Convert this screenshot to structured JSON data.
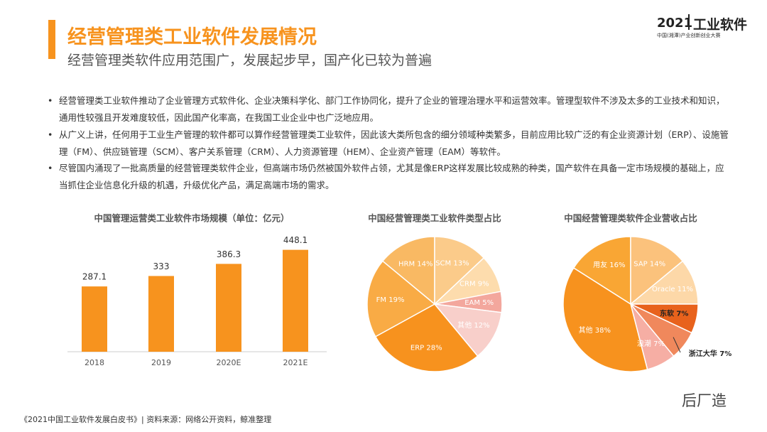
{
  "header": {
    "title": "经营管理类工业软件发展情况",
    "subtitle": "经营管理类软件应用范围广，发展起步早，国产化已较为普遍",
    "logo": {
      "year": "2021",
      "name": "工业软件",
      "caption": "中国(湘潭)产业创新创业大赛"
    }
  },
  "bullets": [
    "经营管理类工业软件推动了企业管理方式软件化、企业决策科学化、部门工作协同化，提升了企业的管理治理水平和运营效率。管理型软件不涉及太多的工业技术和知识，通用性较强且开发难度较低，因此国产化率高，在我国工业企业中也广泛地应用。",
    "从广义上讲，任何用于工业生产管理的软件都可以算作经营管理类工业软件，因此该大类所包含的细分领域种类繁多，目前应用比较广泛的有企业资源计划（ERP）、设施管理（FM）、供应链管理（SCM）、客户关系管理（CRM）、人力资源管理（HEM）、企业资产管理（EAM）等软件。",
    "尽管国内涌现了一批高质量的经营管理类软件企业，但高端市场仍然被国外软件占领，尤其是像ERP这样发展比较成熟的种类，国产软件在具备一定市场规模的基础上，应当抓住企业信息化升级的机遇，升级优化产品，满足高端市场的需求。"
  ],
  "chart_data": [
    {
      "type": "bar",
      "title": "中国管理运营类工业软件市场规模（单位：亿元）",
      "categories": [
        "2018",
        "2019",
        "2020E",
        "2021E"
      ],
      "values": [
        287.1,
        333,
        386.3,
        448.1
      ],
      "color": "#f7931e"
    },
    {
      "type": "pie",
      "title": "中国经营管理类工业软件类型占比",
      "values": [
        14,
        13,
        9,
        5,
        12,
        28,
        19
      ],
      "value_labels": [
        "HRM 14%",
        "SCM 13%",
        "CRM 9%",
        "EAM 5%",
        "其他 12%",
        "ERP 28%",
        "FM 19%"
      ],
      "colors": [
        "#f9b963",
        "#fbcb8a",
        "#fddcad",
        "#f3a79d",
        "#f8cfca",
        "#f7921e",
        "#f9ab45"
      ]
    },
    {
      "type": "pie",
      "title": "中国经营管理类软件企业营收占比",
      "values": [
        16,
        14,
        11,
        7,
        7,
        7,
        38
      ],
      "value_labels": [
        "用友 16%",
        "SAP 14%",
        "Oracle 11%",
        "东软 7%",
        "浙江大华 7%",
        "浪潮 7%",
        "其他 38%"
      ],
      "colors": [
        "#f9a634",
        "#fbc27c",
        "#fdd8a8",
        "#e8621c",
        "#f0885c",
        "#f6aea4",
        "#f7921e"
      ]
    }
  ],
  "footer": {
    "source": "《2021中国工业软件发展白皮书》| 资料来源：网络公开资料，鲸准整理",
    "watermark": "后厂造"
  }
}
